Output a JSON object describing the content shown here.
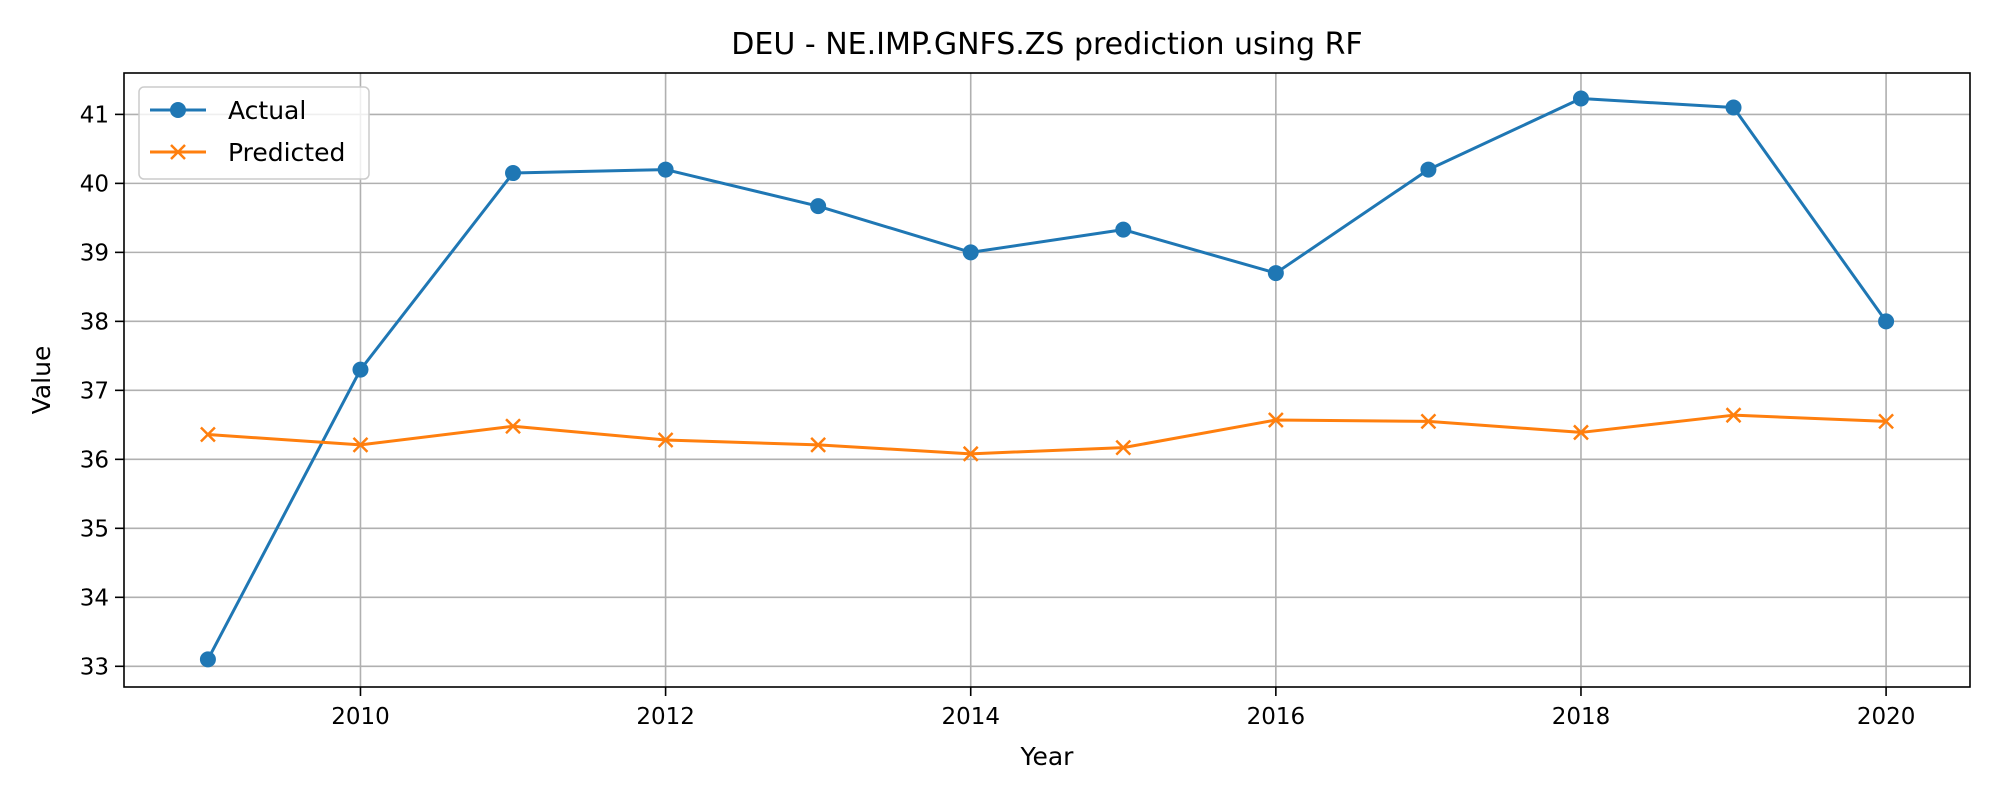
{
  "chart_data": {
    "type": "line",
    "title": "DEU - NE.IMP.GNFS.ZS prediction using RF",
    "xlabel": "Year",
    "ylabel": "Value",
    "x": [
      2009,
      2010,
      2011,
      2012,
      2013,
      2014,
      2015,
      2016,
      2017,
      2018,
      2019,
      2020
    ],
    "xlim": [
      2008.45,
      2020.55
    ],
    "ylim": [
      32.7,
      41.6
    ],
    "xticks": [
      2010,
      2012,
      2014,
      2016,
      2018,
      2020
    ],
    "yticks": [
      33,
      34,
      35,
      36,
      37,
      38,
      39,
      40,
      41
    ],
    "grid": true,
    "legend_position": "upper-left",
    "series": [
      {
        "name": "Actual",
        "color": "#1f77b4",
        "marker": "circle",
        "values": [
          33.1,
          37.3,
          40.15,
          40.2,
          39.67,
          39.0,
          39.33,
          38.7,
          40.2,
          41.23,
          41.1,
          38.0
        ]
      },
      {
        "name": "Predicted",
        "color": "#ff7f0e",
        "marker": "x",
        "values": [
          36.36,
          36.21,
          36.48,
          36.28,
          36.21,
          36.08,
          36.17,
          36.57,
          36.55,
          36.39,
          36.64,
          36.55
        ]
      }
    ]
  }
}
